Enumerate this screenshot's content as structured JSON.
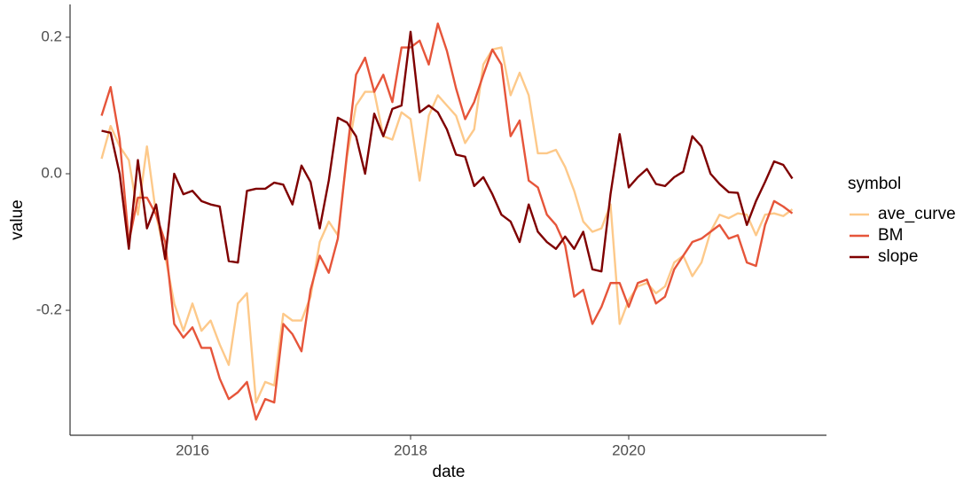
{
  "chart_data": {
    "type": "line",
    "x_label": "date",
    "y_label": "value",
    "legend_title": "symbol",
    "x": [
      2015.167,
      2015.25,
      2015.333,
      2015.417,
      2015.5,
      2015.583,
      2015.667,
      2015.75,
      2015.833,
      2015.917,
      2016,
      2016.083,
      2016.167,
      2016.25,
      2016.333,
      2016.417,
      2016.5,
      2016.583,
      2016.667,
      2016.75,
      2016.833,
      2016.917,
      2017,
      2017.083,
      2017.167,
      2017.25,
      2017.333,
      2017.417,
      2017.5,
      2017.583,
      2017.667,
      2017.75,
      2017.833,
      2017.917,
      2018,
      2018.083,
      2018.167,
      2018.25,
      2018.333,
      2018.417,
      2018.5,
      2018.583,
      2018.667,
      2018.75,
      2018.833,
      2018.917,
      2019,
      2019.083,
      2019.167,
      2019.25,
      2019.333,
      2019.417,
      2019.5,
      2019.583,
      2019.667,
      2019.75,
      2019.833,
      2019.917,
      2020,
      2020.083,
      2020.167,
      2020.25,
      2020.333,
      2020.417,
      2020.5,
      2020.583,
      2020.667,
      2020.75,
      2020.833,
      2020.917,
      2021,
      2021.083,
      2021.167,
      2021.25,
      2021.333,
      2021.417,
      2021.5
    ],
    "series": [
      {
        "name": "ave_curve",
        "color": "#fdc98a",
        "values": [
          0.022,
          0.07,
          0.04,
          0.02,
          -0.06,
          0.04,
          -0.06,
          -0.12,
          -0.19,
          -0.23,
          -0.19,
          -0.23,
          -0.215,
          -0.25,
          -0.28,
          -0.19,
          -0.175,
          -0.335,
          -0.305,
          -0.31,
          -0.205,
          -0.215,
          -0.215,
          -0.18,
          -0.1,
          -0.07,
          -0.09,
          0.025,
          0.1,
          0.12,
          0.12,
          0.055,
          0.05,
          0.09,
          0.08,
          -0.01,
          0.085,
          0.115,
          0.1,
          0.085,
          0.045,
          0.065,
          0.16,
          0.182,
          0.185,
          0.115,
          0.148,
          0.115,
          0.03,
          0.03,
          0.035,
          0.01,
          -0.025,
          -0.07,
          -0.085,
          -0.08,
          -0.045,
          -0.22,
          -0.185,
          -0.165,
          -0.16,
          -0.175,
          -0.165,
          -0.13,
          -0.12,
          -0.15,
          -0.13,
          -0.085,
          -0.06,
          -0.065,
          -0.058,
          -0.06,
          -0.09,
          -0.06,
          -0.058,
          -0.062,
          -0.052
        ]
      },
      {
        "name": "BM",
        "color": "#e6553a",
        "values": [
          0.085,
          0.127,
          0.05,
          -0.1,
          -0.035,
          -0.035,
          -0.06,
          -0.1,
          -0.22,
          -0.24,
          -0.225,
          -0.255,
          -0.255,
          -0.3,
          -0.33,
          -0.32,
          -0.305,
          -0.36,
          -0.33,
          -0.335,
          -0.22,
          -0.235,
          -0.26,
          -0.17,
          -0.12,
          -0.145,
          -0.095,
          0.03,
          0.145,
          0.17,
          0.12,
          0.145,
          0.105,
          0.185,
          0.185,
          0.195,
          0.16,
          0.22,
          0.18,
          0.125,
          0.08,
          0.105,
          0.145,
          0.182,
          0.16,
          0.055,
          0.078,
          -0.01,
          -0.02,
          -0.06,
          -0.075,
          -0.105,
          -0.18,
          -0.17,
          -0.22,
          -0.195,
          -0.16,
          -0.16,
          -0.195,
          -0.16,
          -0.155,
          -0.19,
          -0.18,
          -0.14,
          -0.12,
          -0.1,
          -0.095,
          -0.085,
          -0.075,
          -0.095,
          -0.09,
          -0.13,
          -0.135,
          -0.075,
          -0.04,
          -0.048,
          -0.058
        ]
      },
      {
        "name": "slope",
        "color": "#7f0000",
        "values": [
          0.063,
          0.06,
          0.0,
          -0.11,
          0.02,
          -0.08,
          -0.045,
          -0.125,
          0.0,
          -0.03,
          -0.025,
          -0.04,
          -0.045,
          -0.048,
          -0.128,
          -0.13,
          -0.025,
          -0.022,
          -0.022,
          -0.013,
          -0.016,
          -0.045,
          0.012,
          -0.012,
          -0.08,
          -0.01,
          0.082,
          0.075,
          0.055,
          0.0,
          0.088,
          0.055,
          0.095,
          0.1,
          0.208,
          0.09,
          0.1,
          0.09,
          0.065,
          0.028,
          0.025,
          -0.018,
          -0.005,
          -0.03,
          -0.06,
          -0.07,
          -0.1,
          -0.045,
          -0.085,
          -0.1,
          -0.11,
          -0.092,
          -0.11,
          -0.085,
          -0.14,
          -0.143,
          -0.03,
          0.058,
          -0.02,
          -0.005,
          0.007,
          -0.015,
          -0.018,
          -0.005,
          0.003,
          0.055,
          0.04,
          0.0,
          -0.015,
          -0.027,
          -0.028,
          -0.075,
          -0.04,
          -0.012,
          0.018,
          0.013,
          -0.007
        ]
      }
    ],
    "xlim": [
      2014.878,
      2021.813
    ],
    "xticks": [
      2016,
      2018,
      2020
    ],
    "ylim": [
      -0.383,
      0.248
    ],
    "yticks": [
      -0.2,
      {
        "value": 0,
        "label": "0.0"
      },
      0.2
    ]
  }
}
